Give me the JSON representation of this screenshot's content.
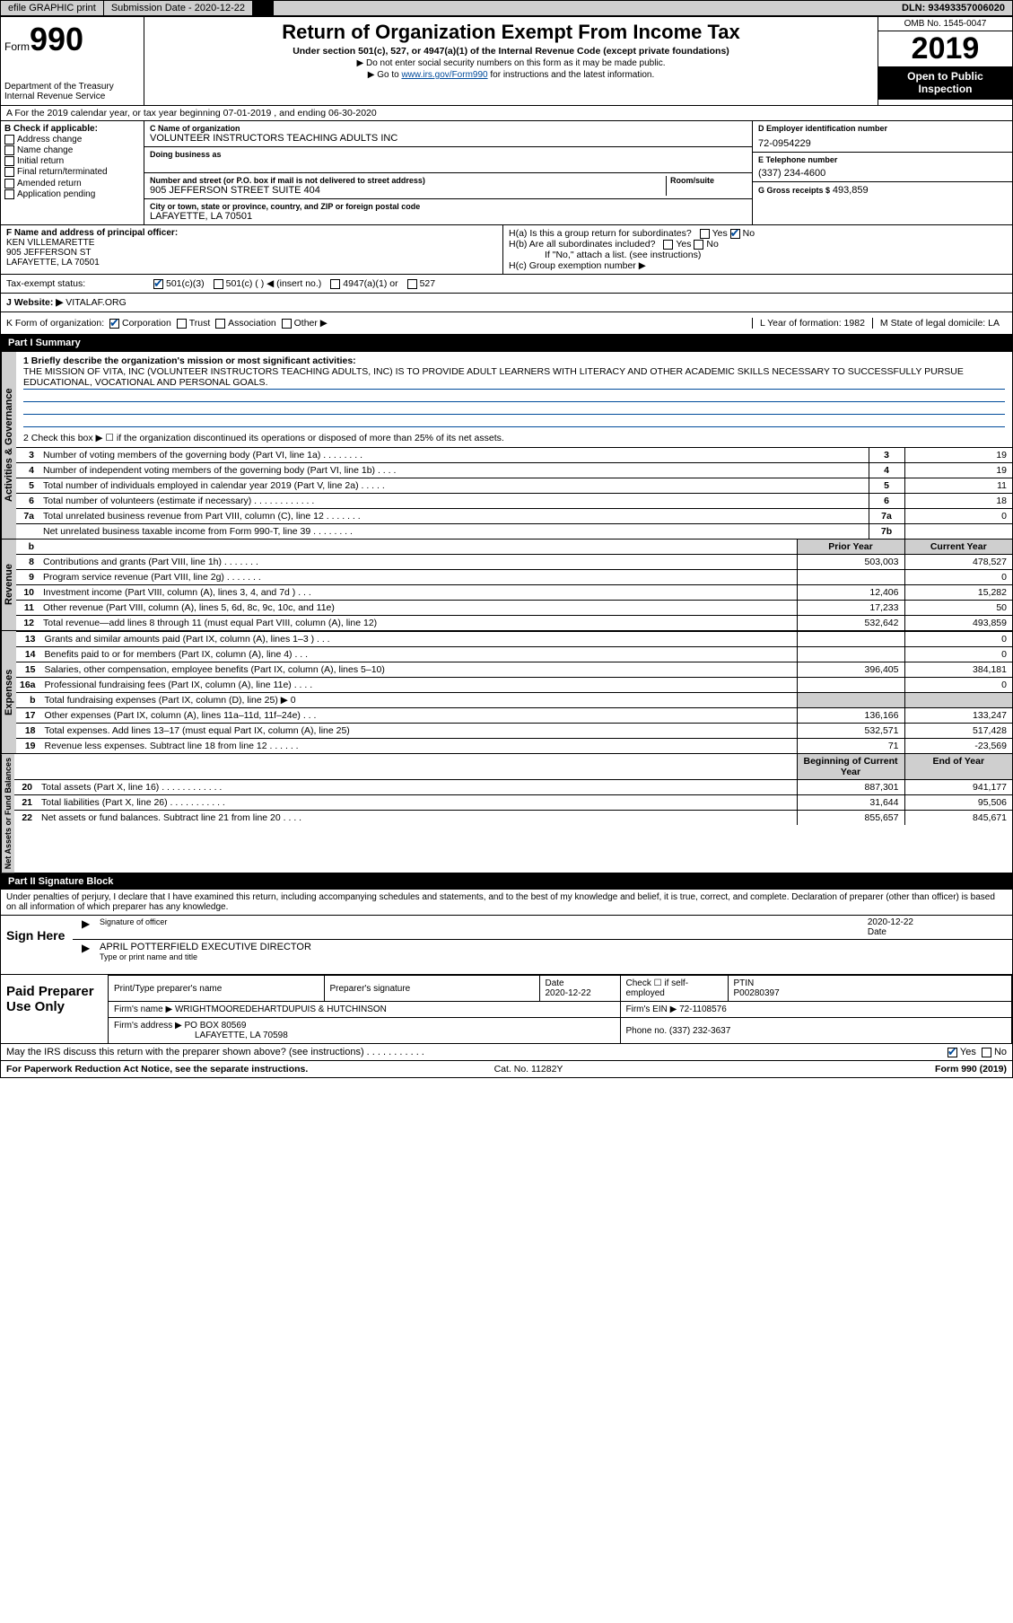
{
  "top_bar": {
    "efile": "efile GRAPHIC print",
    "sub_label": "Submission Date - 2020-12-22",
    "dln": "DLN: 93493357006020"
  },
  "header": {
    "form_label": "Form",
    "form_number": "990",
    "dept": "Department of the Treasury",
    "irs": "Internal Revenue Service",
    "title": "Return of Organization Exempt From Income Tax",
    "subtitle": "Under section 501(c), 527, or 4947(a)(1) of the Internal Revenue Code (except private foundations)",
    "note1": "▶ Do not enter social security numbers on this form as it may be made public.",
    "note2_pre": "▶ Go to ",
    "note2_link": "www.irs.gov/Form990",
    "note2_post": " for instructions and the latest information.",
    "omb": "OMB No. 1545-0047",
    "year": "2019",
    "open_public": "Open to Public Inspection"
  },
  "row_a": "A For the 2019 calendar year, or tax year beginning 07-01-2019    , and ending 06-30-2020",
  "box_b": {
    "title": "B Check if applicable:",
    "items": [
      "Address change",
      "Name change",
      "Initial return",
      "Final return/terminated",
      "Amended return",
      "Application pending"
    ]
  },
  "box_c": {
    "name_label": "C Name of organization",
    "name": "VOLUNTEER INSTRUCTORS TEACHING ADULTS INC",
    "dba_label": "Doing business as",
    "addr_label": "Number and street (or P.O. box if mail is not delivered to street address)",
    "room_label": "Room/suite",
    "addr": "905 JEFFERSON STREET SUITE 404",
    "city_label": "City or town, state or province, country, and ZIP or foreign postal code",
    "city": "LAFAYETTE, LA  70501"
  },
  "box_d": {
    "label": "D Employer identification number",
    "value": "72-0954229"
  },
  "box_e": {
    "label": "E Telephone number",
    "value": "(337) 234-4600"
  },
  "box_g": {
    "label": "G Gross receipts $",
    "value": "493,859"
  },
  "box_f": {
    "label": "F  Name and address of principal officer:",
    "line1": "KEN VILLEMARETTE",
    "line2": "905 JEFFERSON ST",
    "line3": "LAFAYETTE, LA  70501"
  },
  "box_h": {
    "ha": "H(a)  Is this a group return for subordinates?",
    "hb": "H(b)  Are all subordinates included?",
    "hb_note": "If \"No,\" attach a list. (see instructions)",
    "hc": "H(c)  Group exemption number ▶"
  },
  "tax_status": {
    "label": "Tax-exempt status:",
    "opts": [
      "501(c)(3)",
      "501(c) (   ) ◀ (insert no.)",
      "4947(a)(1) or",
      "527"
    ]
  },
  "website": {
    "label": "J  Website: ▶",
    "value": "VITALAF.ORG"
  },
  "row_k": {
    "label": "K Form of organization:",
    "opts": [
      "Corporation",
      "Trust",
      "Association",
      "Other ▶"
    ],
    "l": "L Year of formation: 1982",
    "m": "M State of legal domicile: LA"
  },
  "part1": {
    "title": "Part I    Summary",
    "q1": "1  Briefly describe the organization's mission or most significant activities:",
    "mission": "THE MISSION OF VITA, INC (VOLUNTEER INSTRUCTORS TEACHING ADULTS, INC) IS TO PROVIDE ADULT LEARNERS WITH LITERACY AND OTHER ACADEMIC SKILLS NECESSARY TO SUCCESSFULLY PURSUE EDUCATIONAL, VOCATIONAL AND PERSONAL GOALS.",
    "q2": "2   Check this box ▶ ☐  if the organization discontinued its operations or disposed of more than 25% of its net assets."
  },
  "activities_tab": "Activities & Governance",
  "revenue_tab": "Revenue",
  "expenses_tab": "Expenses",
  "netassets_tab": "Net Assets or Fund Balances",
  "governance_rows": [
    {
      "n": "3",
      "t": "Number of voting members of the governing body (Part VI, line 1a)  .   .   .   .   .   .   .   .",
      "b": "3",
      "v": "19"
    },
    {
      "n": "4",
      "t": "Number of independent voting members of the governing body (Part VI, line 1b)  .   .   .   .",
      "b": "4",
      "v": "19"
    },
    {
      "n": "5",
      "t": "Total number of individuals employed in calendar year 2019 (Part V, line 2a)  .   .   .   .   .",
      "b": "5",
      "v": "11"
    },
    {
      "n": "6",
      "t": "Total number of volunteers (estimate if necessary)    .   .   .   .   .   .   .   .   .   .   .   .",
      "b": "6",
      "v": "18"
    },
    {
      "n": "7a",
      "t": "Total unrelated business revenue from Part VIII, column (C), line 12   .   .   .   .   .   .   .",
      "b": "7a",
      "v": "0"
    },
    {
      "n": "",
      "t": "Net unrelated business taxable income from Form 990-T, line 39   .   .   .   .   .   .   .   .",
      "b": "7b",
      "v": ""
    }
  ],
  "col_headers": {
    "prior": "Prior Year",
    "current": "Current Year"
  },
  "revenue_rows": [
    {
      "n": "8",
      "t": "Contributions and grants (Part VIII, line 1h)   .   .   .   .   .   .   .",
      "p": "503,003",
      "c": "478,527"
    },
    {
      "n": "9",
      "t": "Program service revenue (Part VIII, line 2g)   .   .   .   .   .   .   .",
      "p": "",
      "c": "0"
    },
    {
      "n": "10",
      "t": "Investment income (Part VIII, column (A), lines 3, 4, and 7d )   .   .   .",
      "p": "12,406",
      "c": "15,282"
    },
    {
      "n": "11",
      "t": "Other revenue (Part VIII, column (A), lines 5, 6d, 8c, 9c, 10c, and 11e)",
      "p": "17,233",
      "c": "50"
    },
    {
      "n": "12",
      "t": "Total revenue—add lines 8 through 11 (must equal Part VIII, column (A), line 12)",
      "p": "532,642",
      "c": "493,859"
    }
  ],
  "expense_rows": [
    {
      "n": "13",
      "t": "Grants and similar amounts paid (Part IX, column (A), lines 1–3 )  .   .   .",
      "p": "",
      "c": "0"
    },
    {
      "n": "14",
      "t": "Benefits paid to or for members (Part IX, column (A), line 4)  .   .   .",
      "p": "",
      "c": "0"
    },
    {
      "n": "15",
      "t": "Salaries, other compensation, employee benefits (Part IX, column (A), lines 5–10)",
      "p": "396,405",
      "c": "384,181"
    },
    {
      "n": "16a",
      "t": "Professional fundraising fees (Part IX, column (A), line 11e)   .   .   .   .",
      "p": "",
      "c": "0"
    },
    {
      "n": "b",
      "t": "Total fundraising expenses (Part IX, column (D), line 25) ▶ 0",
      "p": "grey",
      "c": "grey"
    },
    {
      "n": "17",
      "t": "Other expenses (Part IX, column (A), lines 11a–11d, 11f–24e)   .   .   .",
      "p": "136,166",
      "c": "133,247"
    },
    {
      "n": "18",
      "t": "Total expenses. Add lines 13–17 (must equal Part IX, column (A), line 25)",
      "p": "532,571",
      "c": "517,428"
    },
    {
      "n": "19",
      "t": "Revenue less expenses. Subtract line 18 from line 12  .   .   .   .   .   .",
      "p": "71",
      "c": "-23,569"
    }
  ],
  "na_headers": {
    "begin": "Beginning of Current Year",
    "end": "End of Year"
  },
  "netassets_rows": [
    {
      "n": "20",
      "t": "Total assets (Part X, line 16)  .   .   .   .   .   .   .   .   .   .   .   .",
      "p": "887,301",
      "c": "941,177"
    },
    {
      "n": "21",
      "t": "Total liabilities (Part X, line 26)  .   .   .   .   .   .   .   .   .   .   .",
      "p": "31,644",
      "c": "95,506"
    },
    {
      "n": "22",
      "t": "Net assets or fund balances. Subtract line 21 from line 20  .   .   .   .",
      "p": "855,657",
      "c": "845,671"
    }
  ],
  "part2": {
    "title": "Part II    Signature Block",
    "decl": "Under penalties of perjury, I declare that I have examined this return, including accompanying schedules and statements, and to the best of my knowledge and belief, it is true, correct, and complete. Declaration of preparer (other than officer) is based on all information of which preparer has any knowledge."
  },
  "sign": {
    "label": "Sign Here",
    "sig_officer": "Signature of officer",
    "date": "2020-12-22",
    "date_label": "Date",
    "name": "APRIL POTTERFIELD  EXECUTIVE DIRECTOR",
    "name_label": "Type or print name and title"
  },
  "paid": {
    "label": "Paid Preparer Use Only",
    "h_print": "Print/Type preparer's name",
    "h_sig": "Preparer's signature",
    "h_date": "Date",
    "date": "2020-12-22",
    "h_check": "Check ☐ if self-employed",
    "h_ptin": "PTIN",
    "ptin": "P00280397",
    "firm_name_label": "Firm's name      ▶",
    "firm_name": "WRIGHTMOOREDEHARTDUPUIS & HUTCHINSON",
    "firm_ein_label": "Firm's EIN ▶",
    "firm_ein": "72-1108576",
    "firm_addr_label": "Firm's address ▶",
    "firm_addr": "PO BOX 80569",
    "firm_city": "LAFAYETTE, LA  70598",
    "phone_label": "Phone no.",
    "phone": "(337) 232-3637"
  },
  "discuss": "May the IRS discuss this return with the preparer shown above? (see instructions)   .   .   .   .   .   .   .   .   .   .   .",
  "footer": {
    "pra": "For Paperwork Reduction Act Notice, see the separate instructions.",
    "cat": "Cat. No. 11282Y",
    "form": "Form 990 (2019)"
  }
}
